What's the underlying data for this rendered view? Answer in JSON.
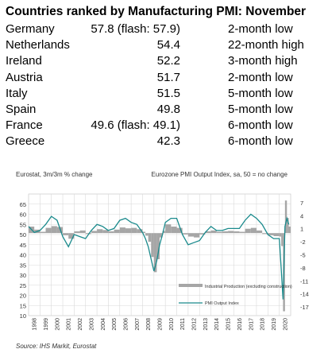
{
  "title": "Countries ranked by Manufacturing PMI: November",
  "table": {
    "rows": [
      {
        "country": "Germany",
        "pmi": "57.8 (flash: 57.9)",
        "status": "2-month low"
      },
      {
        "country": "Netherlands",
        "pmi": "54.4",
        "status": "22-month high"
      },
      {
        "country": "Ireland",
        "pmi": "52.2",
        "status": "3-month high"
      },
      {
        "country": "Austria",
        "pmi": "51.7",
        "status": "2-month low"
      },
      {
        "country": "Italy",
        "pmi": "51.5",
        "status": "5-month low"
      },
      {
        "country": "Spain",
        "pmi": "49.8",
        "status": "5-month low"
      },
      {
        "country": "France",
        "pmi": "49.6 (flash: 49.1)",
        "status": "6-month low"
      },
      {
        "country": "Greece",
        "pmi": "42.3",
        "status": "6-month low"
      }
    ]
  },
  "chart_data": {
    "type": "line",
    "left_axis_label": "Eurostat, 3m/3m % change",
    "right_axis_label": "Eurozone PMI Output Index, sa, 50 = no change",
    "source": "Source: IHS Markit, Eurostat",
    "x_ticks": [
      "1998",
      "1999",
      "2000",
      "2001",
      "2002",
      "2003",
      "2004",
      "2005",
      "2006",
      "2007",
      "2008",
      "2009",
      "2010",
      "2011",
      "2012",
      "2013",
      "2014",
      "2015",
      "2016",
      "2017",
      "2018",
      "2019",
      "2020"
    ],
    "x_range": [
      1998.0,
      2021.0
    ],
    "y_left": {
      "range": [
        10,
        70
      ],
      "ticks": [
        10,
        15,
        20,
        25,
        30,
        35,
        40,
        45,
        50,
        55,
        60,
        65
      ]
    },
    "y_right": {
      "range": [
        -19,
        9
      ],
      "ticks": [
        -17,
        -14,
        -11,
        -8,
        -5,
        -2,
        1,
        4,
        7
      ]
    },
    "grid": true,
    "legend_position": "bottom-center",
    "series": [
      {
        "name": "Industrial Production (excluding construction)",
        "type": "bar",
        "axis": "right",
        "color": "#a6a6a6",
        "x": [
          1998.0,
          1998.5,
          1999.0,
          1999.5,
          2000.0,
          2000.5,
          2001.0,
          2001.5,
          2002.0,
          2002.5,
          2003.0,
          2003.5,
          2004.0,
          2004.5,
          2005.0,
          2005.5,
          2006.0,
          2006.5,
          2007.0,
          2007.5,
          2008.0,
          2008.25,
          2008.5,
          2008.75,
          2009.0,
          2009.25,
          2009.5,
          2009.75,
          2010.0,
          2010.5,
          2011.0,
          2011.5,
          2012.0,
          2012.5,
          2013.0,
          2013.5,
          2014.0,
          2014.5,
          2015.0,
          2015.5,
          2016.0,
          2016.5,
          2017.0,
          2017.5,
          2018.0,
          2018.5,
          2019.0,
          2019.5,
          2020.0,
          2020.17,
          2020.33,
          2020.5,
          2020.67,
          2020.83
        ],
        "values": [
          1.5,
          0.8,
          0.3,
          1.2,
          1.6,
          1.4,
          -0.5,
          -1.3,
          0.4,
          0.6,
          -0.2,
          0.5,
          0.9,
          0.7,
          0.4,
          0.8,
          1.3,
          1.1,
          1.2,
          0.9,
          0.3,
          -0.6,
          -2.0,
          -5.5,
          -9.0,
          -6.0,
          -1.0,
          0.5,
          2.0,
          1.5,
          1.2,
          -0.3,
          -0.8,
          -1.0,
          -0.3,
          0.4,
          0.6,
          0.3,
          0.4,
          0.5,
          0.4,
          0.3,
          1.0,
          1.2,
          0.6,
          -0.2,
          -0.5,
          -0.7,
          -0.8,
          -3.0,
          -18.0,
          7.5,
          3.5,
          1.5
        ]
      },
      {
        "name": "PMI Output Index",
        "type": "line",
        "axis": "left",
        "color": "#1a8a8c",
        "x": [
          1998.0,
          1998.5,
          1999.0,
          1999.5,
          2000.0,
          2000.5,
          2001.0,
          2001.5,
          2002.0,
          2002.5,
          2003.0,
          2003.5,
          2004.0,
          2004.5,
          2005.0,
          2005.5,
          2006.0,
          2006.5,
          2007.0,
          2007.5,
          2008.0,
          2008.25,
          2008.5,
          2008.75,
          2009.0,
          2009.25,
          2009.5,
          2009.75,
          2010.0,
          2010.5,
          2011.0,
          2011.5,
          2012.0,
          2012.5,
          2013.0,
          2013.5,
          2014.0,
          2014.5,
          2015.0,
          2015.5,
          2016.0,
          2016.5,
          2017.0,
          2017.5,
          2018.0,
          2018.5,
          2019.0,
          2019.5,
          2020.0,
          2020.17,
          2020.33,
          2020.5,
          2020.67,
          2020.83
        ],
        "values": [
          54,
          51,
          52,
          55,
          59,
          57,
          49,
          44,
          50,
          49,
          48,
          52,
          55,
          54,
          52,
          53,
          57,
          58,
          56,
          55,
          51,
          48,
          44,
          38,
          32,
          37,
          45,
          50,
          56,
          58,
          58,
          50,
          45,
          46,
          47,
          51,
          54,
          52,
          52,
          53,
          53,
          53,
          57,
          60,
          58,
          55,
          50,
          48,
          48,
          33,
          18,
          54,
          58,
          55
        ]
      }
    ]
  }
}
